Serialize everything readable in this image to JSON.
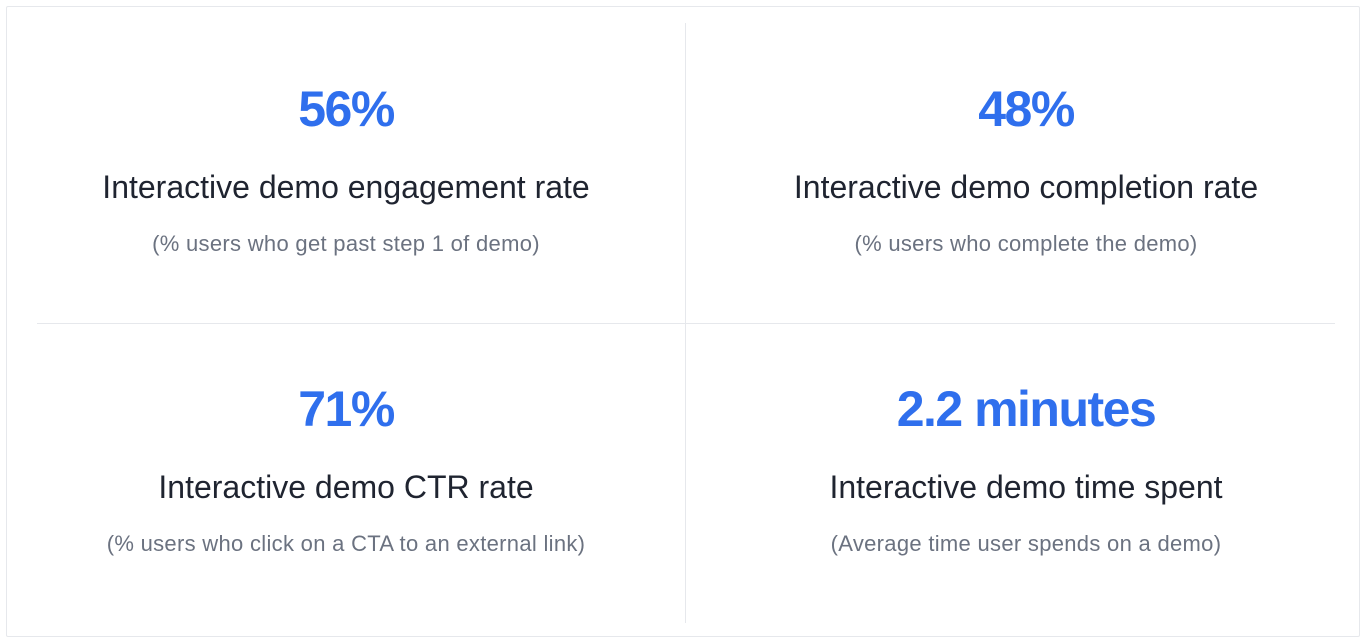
{
  "stats": [
    {
      "value": "56%",
      "title": "Interactive demo engagement rate",
      "subtitle": "(% users who get past step 1 of demo)"
    },
    {
      "value": "48%",
      "title": "Interactive demo completion rate",
      "subtitle": "(% users who complete the demo)"
    },
    {
      "value": "71%",
      "title": "Interactive demo CTR rate",
      "subtitle": "(% users who click on a CTA to an external link)"
    },
    {
      "value": "2.2 minutes",
      "title": "Interactive demo time spent",
      "subtitle": "(Average time user spends on a demo)"
    }
  ],
  "colors": {
    "accent": "#2f6fed",
    "title": "#1f2430",
    "subtitle": "#6b7280",
    "border": "#e6e8ec"
  }
}
